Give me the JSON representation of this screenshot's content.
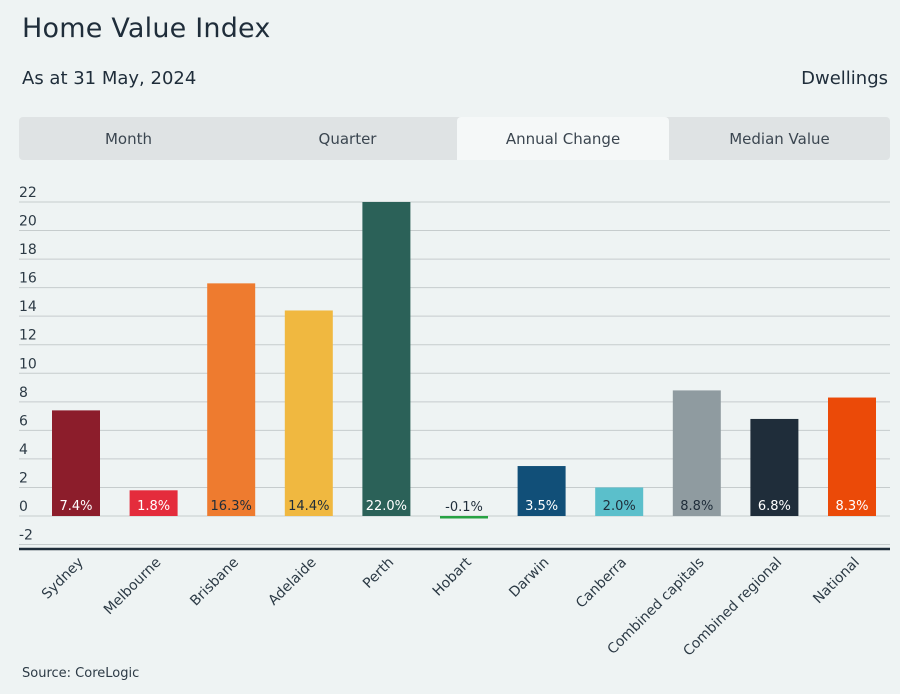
{
  "header": {
    "title": "Home Value Index",
    "subtitle": "As at 31 May, 2024",
    "dwelling_type": "Dwellings"
  },
  "tabs": [
    {
      "label": "Month",
      "active": false
    },
    {
      "label": "Quarter",
      "active": false
    },
    {
      "label": "Annual Change",
      "active": true
    },
    {
      "label": "Median Value",
      "active": false
    }
  ],
  "footer": {
    "source": "Source: CoreLogic"
  },
  "chart_data": {
    "type": "bar",
    "categories": [
      "Sydney",
      "Melbourne",
      "Brisbane",
      "Adelaide",
      "Perth",
      "Hobart",
      "Darwin",
      "Canberra",
      "Combined capitals",
      "Combined regional",
      "National"
    ],
    "values": [
      7.4,
      1.8,
      16.3,
      14.4,
      22.0,
      -0.1,
      3.5,
      2.0,
      8.8,
      6.8,
      8.3
    ],
    "data_labels": [
      "7.4%",
      "1.8%",
      "16.3%",
      "14.4%",
      "22.0%",
      "-0.1%",
      "3.5%",
      "2.0%",
      "8.8%",
      "6.8%",
      "8.3%"
    ],
    "colors": [
      "#8c1d2b",
      "#e42c3c",
      "#ee7b2f",
      "#f0b840",
      "#2b6158",
      "#27a243",
      "#114f78",
      "#5bbfcb",
      "#8f9ba0",
      "#1f2d3a",
      "#eb4a08"
    ],
    "y_ticks": [
      -2,
      0,
      2,
      4,
      6,
      8,
      10,
      12,
      14,
      16,
      18,
      20,
      22
    ],
    "ylim": [
      -2,
      22
    ],
    "grid": true,
    "legend": false
  }
}
